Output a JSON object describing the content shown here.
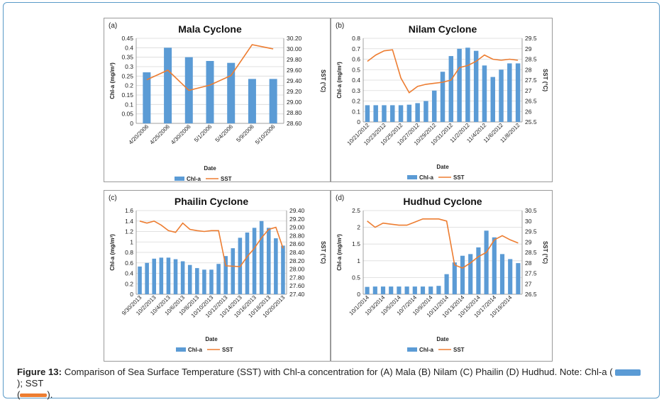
{
  "colors": {
    "chl": "#5b9bd5",
    "sst": "#ed7d31",
    "grid": "#d9d9d9",
    "axis": "#888888"
  },
  "caption": {
    "label": "Figure 13:",
    "text": " Comparison of Sea Surface Temperature (SST) with Chl-a concentration for (A) Mala (B) Nilam (C) Phailin (D) Hudhud. Note: Chl-a (",
    "mid": "); SST",
    "open": "(",
    "end": ")."
  },
  "chart_data": [
    {
      "type": "bar+line",
      "panel_label": "(a)",
      "title": "Mala Cyclone",
      "xlabel": "Date",
      "ylabel": "Chl-a (mg/m³)",
      "y2label": "SST (°C)",
      "categories": [
        "4/20/2006",
        "4/25/2006",
        "4/30/2006",
        "5/1/2006",
        "5/4/2006",
        "5/9/2006",
        "5/10/2006"
      ],
      "ylim": [
        0,
        0.45
      ],
      "yticks": [
        "0",
        "0.05",
        "0.1",
        "0.15",
        "0.2",
        "0.25",
        "0.3",
        "0.35",
        "0.4",
        "0.45"
      ],
      "y2lim": [
        28.6,
        30.2
      ],
      "y2ticks": [
        "28.60",
        "28.80",
        "29.00",
        "29.20",
        "29.40",
        "29.60",
        "29.80",
        "30.00",
        "30.20"
      ],
      "series": [
        {
          "name": "Chl-a",
          "kind": "bar",
          "values": [
            0.27,
            0.4,
            0.35,
            0.33,
            0.32,
            0.235,
            0.235
          ]
        },
        {
          "name": "SST",
          "kind": "line",
          "values": [
            29.42,
            29.6,
            29.22,
            29.32,
            29.5,
            30.08,
            30.0
          ]
        }
      ]
    },
    {
      "type": "bar+line",
      "panel_label": "(b)",
      "title": "Nilam Cyclone",
      "xlabel": "Date",
      "ylabel": "Chl-a (mg/m³)",
      "y2label": "SST (°C)",
      "categories": [
        "10/21/2012",
        "10/22/2012",
        "10/23/2012",
        "10/24/2012",
        "10/25/2012",
        "10/26/2012",
        "10/27/2012",
        "10/28/2012",
        "10/29/2012",
        "10/30/2012",
        "10/31/2012",
        "11/1/2012",
        "11/2/2012",
        "11/3/2012",
        "11/4/2012",
        "11/5/2012",
        "11/6/2012",
        "11/7/2012",
        "11/8/2012"
      ],
      "xtick_labels": [
        "10/21/2012",
        "",
        "10/23/2012",
        "",
        "10/25/2012",
        "",
        "10/27/2012",
        "",
        "10/29/2012",
        "",
        "10/31/2012",
        "",
        "11/2/2012",
        "",
        "11/4/2012",
        "",
        "11/6/2012",
        "",
        "11/8/2012"
      ],
      "ylim": [
        0,
        0.8
      ],
      "yticks": [
        "0",
        "0.1",
        "0.2",
        "0.3",
        "0.4",
        "0.5",
        "0.6",
        "0.7",
        "0.8"
      ],
      "y2lim": [
        25.5,
        29.5
      ],
      "y2ticks": [
        "25.5",
        "26",
        "26.5",
        "27",
        "27.5",
        "28",
        "28.5",
        "29",
        "29.5"
      ],
      "series": [
        {
          "name": "Chl-a",
          "kind": "bar",
          "values": [
            0.16,
            0.16,
            0.16,
            0.16,
            0.16,
            0.165,
            0.18,
            0.2,
            0.3,
            0.48,
            0.63,
            0.7,
            0.71,
            0.68,
            0.54,
            0.43,
            0.5,
            0.56,
            0.56
          ]
        },
        {
          "name": "SST",
          "kind": "line",
          "values": [
            28.4,
            28.7,
            28.9,
            28.95,
            27.6,
            26.9,
            27.2,
            27.3,
            27.35,
            27.4,
            27.5,
            28.1,
            28.2,
            28.4,
            28.7,
            28.5,
            28.45,
            28.5,
            28.45
          ]
        }
      ]
    },
    {
      "type": "bar+line",
      "panel_label": "(c)",
      "title": "Phailin Cyclone",
      "xlabel": "Date",
      "ylabel": "Chl-a (mg/m³)",
      "y2label": "SST (°C)",
      "categories": [
        "9/30/2013",
        "10/1/2013",
        "10/2/2013",
        "10/3/2013",
        "10/4/2013",
        "10/5/2013",
        "10/6/2013",
        "10/7/2013",
        "10/8/2013",
        "10/9/2013",
        "10/10/2013",
        "10/11/2013",
        "10/12/2013",
        "10/13/2013",
        "10/14/2013",
        "10/15/2013",
        "10/16/2013",
        "10/17/2013",
        "10/18/2013",
        "10/19/2013",
        "10/20/2013"
      ],
      "xtick_labels": [
        "9/30/2013",
        "",
        "10/2/2013",
        "",
        "10/4/2013",
        "",
        "10/6/2013",
        "",
        "10/8/2013",
        "",
        "10/10/2013",
        "",
        "10/12/2013",
        "",
        "10/14/2013",
        "",
        "10/16/2013",
        "",
        "10/18/2013",
        "",
        "10/20/2013"
      ],
      "ylim": [
        0,
        1.6
      ],
      "yticks": [
        "0",
        "0.2",
        "0.4",
        "0.6",
        "0.8",
        "1",
        "1.2",
        "1.4",
        "1.6"
      ],
      "y2lim": [
        27.4,
        29.4
      ],
      "y2ticks": [
        "27.40",
        "27.60",
        "27.80",
        "28.00",
        "28.20",
        "28.40",
        "28.60",
        "28.80",
        "29.00",
        "29.20",
        "29.40"
      ],
      "series": [
        {
          "name": "Chl-a",
          "kind": "bar",
          "values": [
            0.53,
            0.6,
            0.68,
            0.7,
            0.7,
            0.67,
            0.63,
            0.56,
            0.5,
            0.47,
            0.47,
            0.58,
            0.73,
            0.88,
            1.08,
            1.18,
            1.27,
            1.4,
            1.27,
            1.07,
            0.93
          ]
        },
        {
          "name": "SST",
          "kind": "line",
          "values": [
            29.15,
            29.1,
            29.15,
            29.05,
            28.92,
            28.88,
            29.1,
            28.95,
            28.92,
            28.9,
            28.92,
            28.92,
            28.08,
            28.07,
            28.06,
            28.3,
            28.5,
            28.75,
            28.95,
            29.0,
            28.5
          ]
        }
      ]
    },
    {
      "type": "bar+line",
      "panel_label": "(d)",
      "title": "Hudhud Cyclone",
      "xlabel": "Date",
      "ylabel": "Chl-a (mg/m³)",
      "y2label": "SST (°C)",
      "categories": [
        "10/1/2014",
        "10/2/2014",
        "10/3/2014",
        "10/4/2014",
        "10/5/2014",
        "10/6/2014",
        "10/7/2014",
        "10/8/2014",
        "10/9/2014",
        "10/10/2014",
        "10/11/2014",
        "10/12/2014",
        "10/13/2014",
        "10/14/2014",
        "10/15/2014",
        "10/16/2014",
        "10/17/2014",
        "10/18/2014",
        "10/19/2014",
        "10/20/2014"
      ],
      "xtick_labels": [
        "10/1/2014",
        "",
        "10/3/2014",
        "",
        "10/5/2014",
        "",
        "10/7/2014",
        "",
        "10/9/2014",
        "",
        "10/11/2014",
        "",
        "10/13/2014",
        "",
        "10/15/2014",
        "",
        "10/17/2014",
        "",
        "10/19/2014",
        ""
      ],
      "ylim": [
        0,
        2.5
      ],
      "yticks": [
        "0",
        "0.5",
        "1",
        "1.5",
        "2",
        "2.5"
      ],
      "y2lim": [
        26.5,
        30.5
      ],
      "y2ticks": [
        "26.5",
        "27",
        "27.5",
        "28",
        "28.5",
        "29",
        "29.5",
        "30",
        "30.5"
      ],
      "series": [
        {
          "name": "Chl-a",
          "kind": "bar",
          "values": [
            0.22,
            0.23,
            0.23,
            0.23,
            0.23,
            0.23,
            0.23,
            0.23,
            0.23,
            0.25,
            0.6,
            0.95,
            1.15,
            1.2,
            1.4,
            1.9,
            1.7,
            1.2,
            1.05,
            0.93
          ]
        },
        {
          "name": "SST",
          "kind": "line",
          "values": [
            30.0,
            29.7,
            29.9,
            29.85,
            29.8,
            29.8,
            29.95,
            30.1,
            30.1,
            30.1,
            30.0,
            27.9,
            27.75,
            28.0,
            28.3,
            28.5,
            29.1,
            29.3,
            29.1,
            28.95
          ]
        }
      ]
    }
  ]
}
